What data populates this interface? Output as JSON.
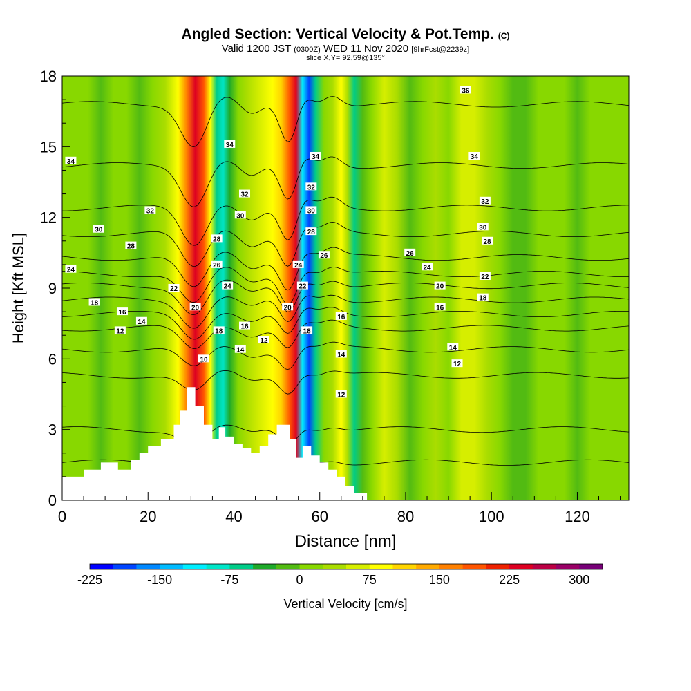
{
  "header": {
    "title": "Angled Section: Vertical Velocity & Pot.Temp.",
    "title_units": "(C)",
    "subtitle_main": "Valid 1200 JST",
    "subtitle_utc": "(0300Z)",
    "subtitle_date": "WED 11 Nov 2020",
    "subtitle_fcst": "[9hrFcst@2239z]",
    "slice": "slice X,Y= 92,59@135°"
  },
  "chart_data": {
    "type": "heatmap",
    "title": "Angled Section: Vertical Velocity & Pot.Temp.",
    "xlabel": "Distance [nm]",
    "ylabel": "Height [Kft MSL]",
    "xlim": [
      0,
      132
    ],
    "ylim": [
      0,
      18
    ],
    "x_ticks": [
      "0",
      "20",
      "40",
      "60",
      "80",
      "100",
      "120"
    ],
    "y_ticks": [
      "0",
      "3",
      "6",
      "9",
      "12",
      "15",
      "18"
    ],
    "colorbar": {
      "label": "Vertical Velocity [cm/s]",
      "range": [
        -225,
        325
      ],
      "step": 25,
      "tick_labels": [
        "-225",
        "-150",
        "-75",
        "0",
        "75",
        "150",
        "225",
        "300"
      ],
      "colors": [
        "#0000ff",
        "#0044ff",
        "#0088ff",
        "#00bbff",
        "#00eeff",
        "#00e6c8",
        "#00cc88",
        "#1faa2a",
        "#52bb12",
        "#88d800",
        "#aadd00",
        "#d6ee00",
        "#ffff00",
        "#ffd500",
        "#ffaa00",
        "#ff8000",
        "#ff5500",
        "#ee2200",
        "#dd0022",
        "#bb0044",
        "#990066",
        "#770077"
      ]
    },
    "velocity_bands": [
      {
        "x": 0,
        "v": 12
      },
      {
        "x": 6,
        "v": 8
      },
      {
        "x": 9,
        "v": -5
      },
      {
        "x": 12,
        "v": 5
      },
      {
        "x": 15,
        "v": 15
      },
      {
        "x": 18,
        "v": -15
      },
      {
        "x": 21,
        "v": 10
      },
      {
        "x": 24,
        "v": 40
      },
      {
        "x": 27,
        "v": 90
      },
      {
        "x": 29,
        "v": 160
      },
      {
        "x": 31,
        "v": 230
      },
      {
        "x": 33,
        "v": 180
      },
      {
        "x": 34.5,
        "v": 90
      },
      {
        "x": 36,
        "v": -60
      },
      {
        "x": 37.5,
        "v": -90
      },
      {
        "x": 39,
        "v": -40
      },
      {
        "x": 41,
        "v": 10
      },
      {
        "x": 43,
        "v": 40
      },
      {
        "x": 46,
        "v": 55
      },
      {
        "x": 49,
        "v": 75
      },
      {
        "x": 51,
        "v": 110
      },
      {
        "x": 53,
        "v": 180
      },
      {
        "x": 54.5,
        "v": 240
      },
      {
        "x": 56,
        "v": -110
      },
      {
        "x": 57.5,
        "v": -200
      },
      {
        "x": 59,
        "v": -70
      },
      {
        "x": 61,
        "v": 10
      },
      {
        "x": 63,
        "v": 40
      },
      {
        "x": 65,
        "v": 85
      },
      {
        "x": 66.5,
        "v": 30
      },
      {
        "x": 68,
        "v": -55
      },
      {
        "x": 70,
        "v": -10
      },
      {
        "x": 72,
        "v": 20
      },
      {
        "x": 75,
        "v": 55
      },
      {
        "x": 78,
        "v": 25
      },
      {
        "x": 81,
        "v": -5
      },
      {
        "x": 84,
        "v": 15
      },
      {
        "x": 87,
        "v": 30
      },
      {
        "x": 90,
        "v": 10
      },
      {
        "x": 93,
        "v": 55
      },
      {
        "x": 96,
        "v": 70
      },
      {
        "x": 99,
        "v": 40
      },
      {
        "x": 102,
        "v": 15
      },
      {
        "x": 105,
        "v": -10
      },
      {
        "x": 108,
        "v": -25
      },
      {
        "x": 111,
        "v": 5
      },
      {
        "x": 114,
        "v": 20
      },
      {
        "x": 117,
        "v": 8
      },
      {
        "x": 120,
        "v": -15
      },
      {
        "x": 123,
        "v": 5
      },
      {
        "x": 126,
        "v": 20
      },
      {
        "x": 129,
        "v": 10
      },
      {
        "x": 132,
        "v": 8
      }
    ],
    "terrain": {
      "x": [
        0,
        5,
        5,
        9,
        9,
        13,
        13,
        16,
        16,
        18,
        18,
        20,
        20,
        23,
        23,
        26,
        26,
        27.5,
        27.5,
        29,
        29,
        31,
        31,
        33,
        33,
        35,
        35,
        36.5,
        36.5,
        38,
        38,
        40,
        40,
        42,
        42,
        44,
        44,
        46,
        46,
        48,
        48,
        50,
        50,
        53,
        53,
        54.5,
        54.5,
        56,
        56,
        58,
        58,
        60,
        60,
        62,
        62,
        64,
        64,
        66,
        66,
        68,
        68,
        71,
        71,
        132
      ],
      "y": [
        1.0,
        1.0,
        1.3,
        1.3,
        1.6,
        1.6,
        1.3,
        1.3,
        1.7,
        1.7,
        2.0,
        2.0,
        2.3,
        2.3,
        2.6,
        2.6,
        3.2,
        3.2,
        3.8,
        3.8,
        4.8,
        4.8,
        4.0,
        4.0,
        3.2,
        3.2,
        2.6,
        2.6,
        3.1,
        3.1,
        2.7,
        2.7,
        2.4,
        2.4,
        2.2,
        2.2,
        2.0,
        2.0,
        2.3,
        2.3,
        2.8,
        2.8,
        3.2,
        3.2,
        2.6,
        2.6,
        1.8,
        1.8,
        2.3,
        2.3,
        1.9,
        1.9,
        1.6,
        1.6,
        1.3,
        1.3,
        1.0,
        1.0,
        0.6,
        0.6,
        0.3,
        0.3,
        0.0,
        0.0
      ]
    },
    "theta_contours": {
      "units": "C",
      "levels": [
        10,
        12,
        14,
        16,
        18,
        20,
        22,
        24,
        26,
        28,
        30,
        32,
        34,
        36
      ],
      "labels": [
        {
          "text": "34",
          "x": 2,
          "y": 14.4
        },
        {
          "text": "32",
          "x": 20.5,
          "y": 12.3
        },
        {
          "text": "30",
          "x": 8.5,
          "y": 11.5
        },
        {
          "text": "28",
          "x": 16,
          "y": 10.8
        },
        {
          "text": "24",
          "x": 2,
          "y": 9.8
        },
        {
          "text": "22",
          "x": 26,
          "y": 9.0
        },
        {
          "text": "18",
          "x": 7.5,
          "y": 8.4
        },
        {
          "text": "16",
          "x": 14,
          "y": 8.0
        },
        {
          "text": "14",
          "x": 18.5,
          "y": 7.6
        },
        {
          "text": "12",
          "x": 13.5,
          "y": 7.2
        },
        {
          "text": "34",
          "x": 39,
          "y": 15.1
        },
        {
          "text": "32",
          "x": 42.5,
          "y": 13.0
        },
        {
          "text": "30",
          "x": 41.5,
          "y": 12.1
        },
        {
          "text": "28",
          "x": 36,
          "y": 11.1
        },
        {
          "text": "26",
          "x": 36,
          "y": 10.0
        },
        {
          "text": "24",
          "x": 38.5,
          "y": 9.1
        },
        {
          "text": "20",
          "x": 31,
          "y": 8.2
        },
        {
          "text": "18",
          "x": 36.5,
          "y": 7.2
        },
        {
          "text": "16",
          "x": 42.5,
          "y": 7.4
        },
        {
          "text": "14",
          "x": 41.5,
          "y": 6.4
        },
        {
          "text": "12",
          "x": 47,
          "y": 6.8
        },
        {
          "text": "10",
          "x": 33,
          "y": 6.0
        },
        {
          "text": "34",
          "x": 59,
          "y": 14.6
        },
        {
          "text": "32",
          "x": 58,
          "y": 13.3
        },
        {
          "text": "30",
          "x": 58,
          "y": 12.3
        },
        {
          "text": "28",
          "x": 58,
          "y": 11.4
        },
        {
          "text": "26",
          "x": 61,
          "y": 10.4
        },
        {
          "text": "24",
          "x": 55,
          "y": 10.0
        },
        {
          "text": "22",
          "x": 56,
          "y": 9.1
        },
        {
          "text": "20",
          "x": 52.5,
          "y": 8.2
        },
        {
          "text": "18",
          "x": 57,
          "y": 7.2
        },
        {
          "text": "16",
          "x": 65,
          "y": 7.8
        },
        {
          "text": "14",
          "x": 65,
          "y": 6.2
        },
        {
          "text": "12",
          "x": 65,
          "y": 4.5
        },
        {
          "text": "36",
          "x": 94,
          "y": 17.4
        },
        {
          "text": "34",
          "x": 96,
          "y": 14.6
        },
        {
          "text": "32",
          "x": 98.5,
          "y": 12.7
        },
        {
          "text": "30",
          "x": 98,
          "y": 11.6
        },
        {
          "text": "28",
          "x": 99,
          "y": 11.0
        },
        {
          "text": "26",
          "x": 81,
          "y": 10.5
        },
        {
          "text": "24",
          "x": 85,
          "y": 9.9
        },
        {
          "text": "22",
          "x": 98.5,
          "y": 9.5
        },
        {
          "text": "20",
          "x": 88,
          "y": 9.1
        },
        {
          "text": "18",
          "x": 98,
          "y": 8.6
        },
        {
          "text": "16",
          "x": 88,
          "y": 8.2
        },
        {
          "text": "14",
          "x": 91,
          "y": 6.5
        },
        {
          "text": "12",
          "x": 92,
          "y": 5.8
        }
      ]
    },
    "grid": false,
    "legend": "colorbar-bottom"
  }
}
